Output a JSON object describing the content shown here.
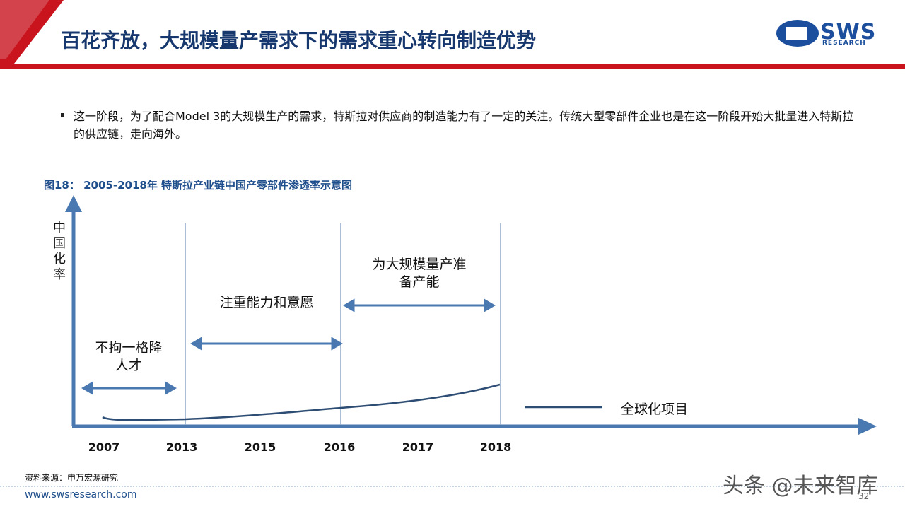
{
  "header": {
    "title": "百花齐放，大规模量产需求下的需求重心转向制造优势",
    "logo": "SWS",
    "logo_sub": "RESEARCH"
  },
  "body": {
    "bullet": "这一阶段，为了配合Model 3的大规模生产的需求，特斯拉对供应商的制造能力有了一定的关注。传统大型零部件企业也是在这一阶段开始大批量进入特斯拉的供应链，走向海外。"
  },
  "figure": {
    "caption": "图18： 2005-2018年 特斯拉产业链中国产零部件渗透率示意图",
    "y_label": "中国化率",
    "x_labels": [
      "2007",
      "2013",
      "2015",
      "2016",
      "2017",
      "2018"
    ],
    "phases": [
      "不拘一格降人才",
      "注重能力和意愿",
      "为大规模量产准备产能"
    ],
    "legend": "全球化项目"
  },
  "footer": {
    "source": "资料来源：申万宏源研究",
    "url": "www.swsresearch.com",
    "page": "32",
    "watermark": "头条 @未来智库"
  }
}
